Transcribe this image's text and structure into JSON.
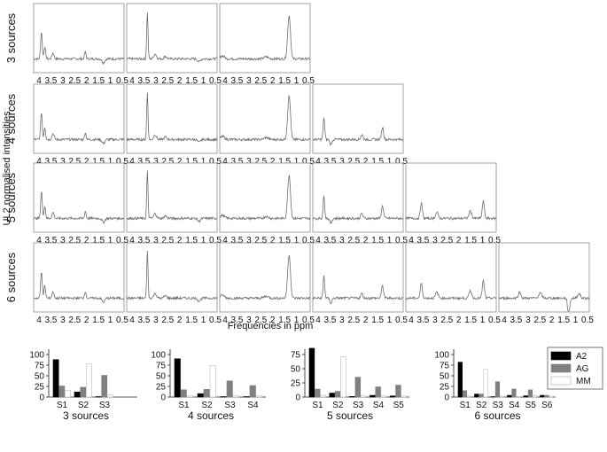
{
  "chart_data": [
    {
      "type": "line",
      "ylabel": "UL2 normalised intensities",
      "xlabel": "Frequencies in ppm",
      "x_ticks": [
        "4",
        "3.5",
        "3",
        "2.5",
        "2",
        "1.5",
        "1",
        "0.5"
      ],
      "x_range": [
        4,
        0.5
      ],
      "rows": [
        {
          "label": "3 sources",
          "n": 3
        },
        {
          "label": "4 sources",
          "n": 4
        },
        {
          "label": "5 sources",
          "n": 5
        },
        {
          "label": "6 sources",
          "n": 6
        }
      ]
    },
    {
      "type": "bar",
      "title": "3 sources",
      "categories": [
        "S1",
        "S2",
        "S3"
      ],
      "ylim": [
        0,
        100
      ],
      "y_ticks": [
        0,
        25,
        50,
        75,
        100
      ],
      "series": [
        {
          "name": "A2",
          "values": [
            88,
            12,
            1
          ]
        },
        {
          "name": "AG",
          "values": [
            26,
            23,
            51
          ]
        },
        {
          "name": "MM",
          "values": [
            16,
            78,
            5
          ]
        }
      ]
    },
    {
      "type": "bar",
      "title": "4 sources",
      "categories": [
        "S1",
        "S2",
        "S3",
        "S4"
      ],
      "ylim": [
        0,
        100
      ],
      "y_ticks": [
        0,
        25,
        50,
        75,
        100
      ],
      "series": [
        {
          "name": "A2",
          "values": [
            90,
            8,
            1,
            1
          ]
        },
        {
          "name": "AG",
          "values": [
            17,
            18,
            38,
            27
          ]
        },
        {
          "name": "MM",
          "values": [
            3,
            74,
            3,
            3
          ]
        }
      ]
    },
    {
      "type": "bar",
      "title": "5 sources",
      "categories": [
        "S1",
        "S2",
        "S3",
        "S4",
        "S5"
      ],
      "ylim": [
        0,
        75
      ],
      "y_ticks": [
        0,
        25,
        50,
        75
      ],
      "series": [
        {
          "name": "A2",
          "values": [
            86,
            7,
            1,
            3,
            2
          ]
        },
        {
          "name": "AG",
          "values": [
            14,
            10,
            35,
            18,
            21
          ]
        },
        {
          "name": "MM",
          "values": [
            3,
            71,
            3,
            2,
            2
          ]
        }
      ]
    },
    {
      "type": "bar",
      "title": "6 sources",
      "categories": [
        "S1",
        "S2",
        "S3",
        "S4",
        "S5",
        "S6"
      ],
      "ylim": [
        0,
        100
      ],
      "y_ticks": [
        0,
        25,
        50,
        75,
        100
      ],
      "legend": {
        "placement": "top-right",
        "entries": [
          "A2",
          "AG",
          "MM"
        ]
      },
      "series": [
        {
          "name": "A2",
          "values": [
            82,
            7,
            1,
            4,
            3,
            4
          ]
        },
        {
          "name": "AG",
          "values": [
            15,
            7,
            36,
            19,
            17,
            4
          ]
        },
        {
          "name": "MM",
          "values": [
            2,
            65,
            2,
            1,
            3,
            2
          ]
        }
      ]
    }
  ],
  "colors": {
    "A2": "#000000",
    "AG": "#808080",
    "MM": "#ffffff",
    "trace": "#6e6e6e",
    "frame": "#8c8c8c"
  }
}
